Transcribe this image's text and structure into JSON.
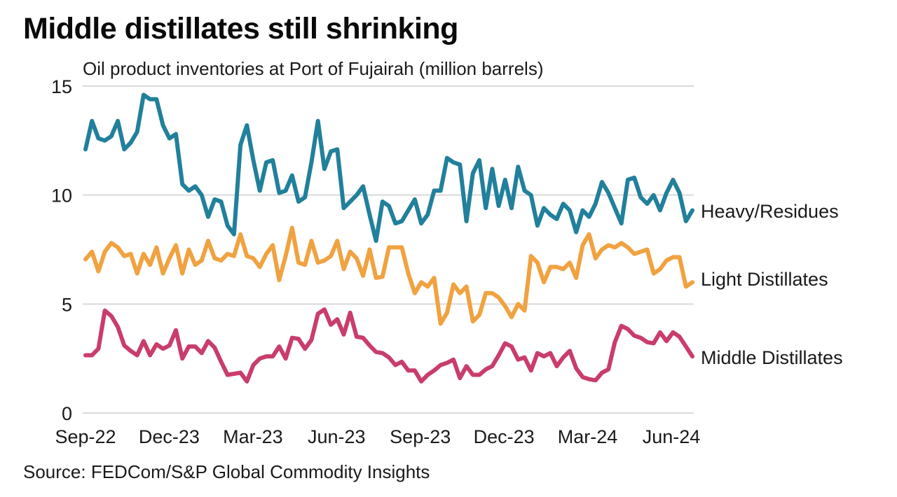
{
  "chart_data": {
    "type": "line",
    "title": "Middle distillates still shrinking",
    "subtitle": "Oil product inventories at Port of Fujairah (million barrels)",
    "source": "Source: FEDCom/S&P Global Commodity Insights",
    "xlabel": "",
    "ylabel": "million barrels",
    "ylim": [
      0,
      15
    ],
    "yticks": [
      0,
      5,
      10,
      15
    ],
    "ytick_labels": [
      "0",
      "5",
      "10",
      "15"
    ],
    "xtick_labels": [
      "Sep-22",
      "Dec-23",
      "Mar-23",
      "Jun-23",
      "Sep-23",
      "Dec-23",
      "Mar-24",
      "Jun-24"
    ],
    "grid": true,
    "legend_placement": "right, direct labels at line ends",
    "frequency": "weekly",
    "series": [
      {
        "name": "Heavy/Residues",
        "color": "#21809b",
        "values": [
          12.1,
          13.4,
          12.6,
          12.5,
          12.7,
          13.4,
          12.1,
          12.4,
          12.9,
          14.6,
          14.4,
          14.4,
          13.2,
          12.6,
          12.8,
          10.5,
          10.2,
          10.4,
          10.0,
          9.0,
          9.8,
          9.7,
          8.6,
          8.2,
          12.3,
          13.2,
          11.6,
          10.2,
          11.5,
          11.6,
          10.1,
          10.2,
          10.9,
          9.7,
          9.9,
          11.5,
          13.4,
          11.2,
          12.0,
          12.1,
          9.4,
          9.7,
          10.0,
          10.4,
          9.1,
          7.9,
          9.7,
          9.5,
          8.7,
          8.8,
          9.3,
          9.8,
          8.7,
          9.1,
          10.2,
          10.2,
          11.7,
          11.5,
          11.4,
          8.8,
          11.0,
          11.6,
          9.4,
          11.2,
          9.5,
          10.7,
          9.4,
          11.3,
          10.2,
          10.0,
          8.6,
          9.4,
          9.1,
          8.9,
          9.6,
          9.3,
          8.3,
          9.3,
          9.0,
          9.6,
          10.6,
          10.1,
          9.4,
          8.7,
          10.7,
          10.8,
          9.9,
          9.6,
          10.0,
          9.3,
          10.1,
          10.7,
          10.1,
          8.8,
          9.3
        ]
      },
      {
        "name": "Light Distillates",
        "color": "#f0a240",
        "values": [
          7.05,
          7.4,
          6.5,
          7.4,
          7.8,
          7.6,
          7.2,
          7.3,
          6.4,
          7.3,
          6.8,
          7.6,
          6.4,
          7.1,
          7.7,
          6.4,
          7.5,
          6.8,
          7.0,
          7.9,
          7.1,
          7.0,
          7.3,
          7.2,
          8.2,
          7.2,
          7.1,
          6.7,
          7.3,
          7.7,
          6.1,
          7.2,
          8.5,
          6.9,
          6.8,
          7.9,
          6.9,
          7.0,
          7.2,
          7.9,
          6.6,
          7.4,
          7.1,
          6.3,
          7.5,
          6.2,
          6.25,
          7.6,
          7.6,
          7.6,
          6.4,
          5.5,
          6.0,
          5.8,
          6.2,
          4.1,
          4.6,
          5.9,
          5.5,
          5.8,
          4.2,
          4.5,
          5.5,
          5.5,
          5.3,
          4.9,
          4.4,
          5.0,
          4.7,
          7.2,
          6.9,
          6.0,
          6.7,
          6.7,
          6.6,
          6.9,
          6.2,
          7.7,
          8.2,
          7.1,
          7.5,
          7.7,
          7.6,
          7.8,
          7.6,
          7.3,
          7.4,
          7.5,
          6.4,
          6.6,
          7.0,
          7.15,
          7.15,
          5.8,
          6.0
        ]
      },
      {
        "name": "Middle Distillates",
        "color": "#c93d6b",
        "values": [
          2.65,
          2.65,
          2.95,
          4.7,
          4.45,
          3.95,
          3.1,
          2.85,
          2.65,
          3.3,
          2.65,
          3.15,
          2.95,
          3.1,
          3.8,
          2.5,
          3.05,
          3.05,
          2.75,
          3.3,
          3.0,
          2.35,
          1.75,
          1.8,
          1.85,
          1.45,
          2.2,
          2.5,
          2.6,
          2.6,
          3.05,
          2.5,
          3.45,
          3.4,
          2.95,
          3.35,
          4.55,
          4.75,
          4.05,
          4.3,
          3.6,
          4.6,
          3.5,
          3.45,
          3.1,
          2.8,
          2.75,
          2.55,
          2.2,
          2.35,
          1.95,
          1.95,
          1.45,
          1.75,
          1.95,
          2.2,
          2.3,
          2.45,
          1.6,
          2.15,
          1.75,
          1.75,
          2.0,
          2.15,
          2.65,
          3.2,
          3.05,
          2.45,
          2.55,
          1.95,
          2.75,
          2.6,
          2.75,
          2.15,
          2.55,
          2.85,
          2.05,
          1.65,
          1.55,
          1.5,
          1.85,
          2.0,
          3.25,
          4.0,
          3.85,
          3.55,
          3.45,
          3.25,
          3.2,
          3.7,
          3.3,
          3.7,
          3.5,
          3.05,
          2.6
        ]
      }
    ]
  }
}
